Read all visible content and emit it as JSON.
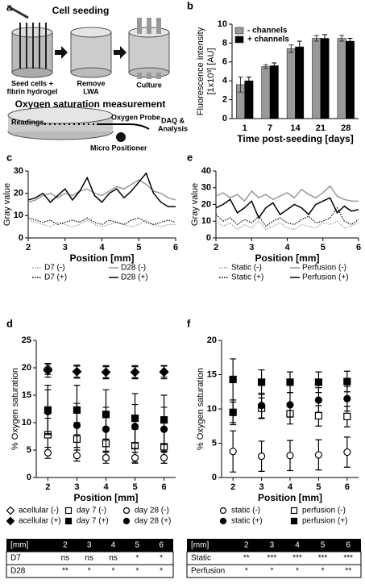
{
  "diagram": {
    "label": "a",
    "title_top": "Cell seeding",
    "step1": [
      "Seed cells +",
      "fibrin hydrogel"
    ],
    "step2": [
      "Remove",
      "LWA"
    ],
    "step3": "Culture",
    "title_bottom": "Oxygen saturation measurement",
    "readings": "Readings",
    "probe": "Oxygen Probe",
    "daq": [
      "DAQ &",
      "Analysis"
    ],
    "positioner": "Micro Positioner"
  },
  "chart_data": [
    {
      "type": "bar",
      "label": "b",
      "y_label": [
        "Fluorescence intensity",
        "[1x10³] [AU]"
      ],
      "x_label": "Time post-seeding [days]",
      "categories": [
        "1",
        "7",
        "14",
        "21",
        "28"
      ],
      "ylim": [
        0,
        10
      ],
      "yticks": [
        0,
        2,
        4,
        6,
        8,
        10
      ],
      "series": [
        {
          "name": "- channels",
          "color": "#999999",
          "values": [
            3.6,
            5.5,
            7.4,
            8.5,
            8.5
          ],
          "errors": [
            0.8,
            0.2,
            0.4,
            0.3,
            0.3
          ]
        },
        {
          "name": "+ channels",
          "color": "#000000",
          "values": [
            4.0,
            5.6,
            7.6,
            8.5,
            8.2
          ],
          "errors": [
            0.4,
            0.3,
            0.6,
            0.4,
            0.3
          ]
        }
      ]
    },
    {
      "type": "line",
      "label": "c",
      "y_label": [
        "Gray value"
      ],
      "x_label": "Position [mm]",
      "xlim": [
        2,
        6
      ],
      "xticks": [
        2,
        3,
        4,
        5,
        6
      ],
      "ylim": [
        0,
        30
      ],
      "yticks": [
        0,
        10,
        20,
        30
      ],
      "x": [
        2.0,
        2.2,
        2.4,
        2.6,
        2.8,
        3.0,
        3.2,
        3.4,
        3.6,
        3.8,
        4.0,
        4.2,
        4.4,
        4.6,
        4.8,
        5.0,
        5.2,
        5.4,
        5.6,
        5.8,
        6.0
      ],
      "series": [
        {
          "name": "D7 (-)",
          "color": "#999999",
          "dash": true,
          "values": [
            8,
            7,
            6,
            5,
            7,
            6,
            5,
            6,
            8,
            6,
            5,
            6,
            7,
            6,
            5,
            6,
            8,
            6,
            5,
            6,
            6
          ]
        },
        {
          "name": "D28 (-)",
          "color": "#999999",
          "dash": false,
          "values": [
            16,
            17,
            19,
            20,
            18,
            20,
            19,
            21,
            22,
            20,
            19,
            21,
            23,
            22,
            24,
            26,
            24,
            21,
            20,
            18,
            17
          ]
        },
        {
          "name": "D7 (+)",
          "color": "#000000",
          "dash": true,
          "values": [
            9,
            8,
            7,
            8,
            6,
            7,
            8,
            7,
            9,
            7,
            6,
            8,
            7,
            6,
            8,
            9,
            7,
            6,
            7,
            8,
            7
          ]
        },
        {
          "name": "D28 (+)",
          "color": "#000000",
          "dash": false,
          "values": [
            17,
            18,
            20,
            16,
            19,
            22,
            17,
            21,
            27,
            19,
            16,
            20,
            22,
            18,
            21,
            25,
            29,
            20,
            16,
            14,
            14
          ]
        }
      ]
    },
    {
      "type": "line",
      "label": "e",
      "y_label": [
        "Gray value"
      ],
      "x_label": "Position [mm]",
      "xlim": [
        2,
        6
      ],
      "xticks": [
        2,
        3,
        4,
        5,
        6
      ],
      "ylim": [
        0,
        40
      ],
      "yticks": [
        0,
        10,
        20,
        30,
        40
      ],
      "x": [
        2.0,
        2.2,
        2.4,
        2.6,
        2.8,
        3.0,
        3.2,
        3.4,
        3.6,
        3.8,
        4.0,
        4.2,
        4.4,
        4.6,
        4.8,
        5.0,
        5.2,
        5.4,
        5.6,
        5.8,
        6.0
      ],
      "series": [
        {
          "name": "Static (-)",
          "color": "#999999",
          "dash": true,
          "values": [
            10,
            7,
            9,
            5,
            8,
            6,
            10,
            5,
            7,
            9,
            6,
            5,
            8,
            7,
            6,
            9,
            8,
            10,
            6,
            7,
            9
          ]
        },
        {
          "name": "Perfusion (-)",
          "color": "#999999",
          "dash": false,
          "values": [
            25,
            27,
            24,
            26,
            22,
            28,
            24,
            26,
            23,
            25,
            27,
            24,
            29,
            26,
            24,
            27,
            31,
            25,
            23,
            22,
            22
          ]
        },
        {
          "name": "Static (+)",
          "color": "#000000",
          "dash": true,
          "values": [
            14,
            10,
            12,
            8,
            11,
            9,
            13,
            7,
            10,
            12,
            9,
            8,
            11,
            13,
            9,
            10,
            12,
            18,
            10,
            8,
            11
          ]
        },
        {
          "name": "Perfusion (+)",
          "color": "#000000",
          "dash": false,
          "values": [
            18,
            20,
            23,
            15,
            18,
            22,
            12,
            18,
            21,
            14,
            17,
            20,
            18,
            14,
            20,
            22,
            24,
            15,
            19,
            16,
            17
          ]
        }
      ]
    },
    {
      "type": "scatter",
      "label": "d",
      "y_label": [
        "% Oxygen saturation"
      ],
      "x_label": "Position [mm]",
      "xlim": [
        1.6,
        6.4
      ],
      "xticks": [
        2,
        3,
        4,
        5,
        6
      ],
      "ylim": [
        0,
        25
      ],
      "yticks": [
        0,
        5,
        10,
        15,
        20,
        25
      ],
      "x": [
        2,
        3,
        4,
        5,
        6
      ],
      "series": [
        {
          "name": "acellular (-)",
          "color": "#000000",
          "marker": "diamond",
          "filled": false,
          "values": [
            19.8,
            19.3,
            19.2,
            19.2,
            19.3
          ],
          "errors": [
            1.0,
            1.0,
            1.0,
            1.0,
            1.0
          ]
        },
        {
          "name": "day 7 (-)",
          "color": "#000000",
          "marker": "square",
          "filled": false,
          "values": [
            7.8,
            7.0,
            6.2,
            5.8,
            5.6
          ],
          "errors": [
            3.0,
            3.0,
            3.0,
            3.0,
            3.0
          ]
        },
        {
          "name": "day 28 (-)",
          "color": "#000000",
          "marker": "circle",
          "filled": false,
          "values": [
            4.5,
            4.0,
            3.6,
            3.6,
            3.6
          ],
          "errors": [
            1.0,
            1.0,
            1.0,
            1.0,
            1.0
          ]
        },
        {
          "name": "acellular (+)",
          "color": "#000000",
          "marker": "diamond",
          "filled": true,
          "values": [
            19.5,
            19.3,
            19.2,
            19.2,
            19.2
          ],
          "errors": [
            1.2,
            1.2,
            1.2,
            1.2,
            1.2
          ]
        },
        {
          "name": "day 7 (+)",
          "color": "#000000",
          "marker": "square",
          "filled": true,
          "values": [
            12.3,
            12.3,
            11.5,
            10.8,
            10.5
          ],
          "errors": [
            4.5,
            4.5,
            4.5,
            4.5,
            4.5
          ]
        },
        {
          "name": "day 28 (+)",
          "color": "#000000",
          "marker": "circle",
          "filled": true,
          "values": [
            12.0,
            9.5,
            8.8,
            9.3,
            8.8
          ],
          "errors": [
            4.0,
            4.0,
            4.0,
            4.0,
            4.0
          ]
        }
      ]
    },
    {
      "type": "scatter",
      "label": "f",
      "y_label": [
        "% Oxygen saturation"
      ],
      "x_label": "Position [mm]",
      "xlim": [
        1.6,
        6.4
      ],
      "xticks": [
        2,
        3,
        4,
        5,
        6
      ],
      "ylim": [
        0,
        20
      ],
      "yticks": [
        0,
        5,
        10,
        15,
        20
      ],
      "x": [
        2,
        3,
        4,
        5,
        6
      ],
      "series": [
        {
          "name": "static (-)",
          "color": "#000000",
          "marker": "circle",
          "filled": false,
          "values": [
            3.8,
            3.1,
            3.2,
            3.3,
            3.7
          ],
          "errors": [
            3.0,
            2.2,
            2.2,
            2.2,
            2.2
          ]
        },
        {
          "name": "perfusion (-)",
          "color": "#000000",
          "marker": "square",
          "filled": false,
          "values": [
            9.5,
            10.1,
            9.3,
            9.0,
            8.9
          ],
          "errors": [
            1.5,
            1.5,
            1.5,
            1.5,
            1.5
          ]
        },
        {
          "name": "static (+)",
          "color": "#000000",
          "marker": "circle",
          "filled": true,
          "values": [
            9.5,
            10.5,
            10.6,
            11.3,
            11.5
          ],
          "errors": [
            1.8,
            1.8,
            1.8,
            1.8,
            1.8
          ]
        },
        {
          "name": "perfusion (+)",
          "color": "#000000",
          "marker": "square",
          "filled": true,
          "values": [
            14.3,
            13.9,
            13.9,
            13.9,
            14.0
          ],
          "errors": [
            3.0,
            1.8,
            1.5,
            1.5,
            1.5
          ]
        }
      ]
    }
  ],
  "tables": [
    {
      "header": [
        "[mm]",
        "2",
        "3",
        "4",
        "5",
        "6"
      ],
      "rows": [
        [
          "D7",
          "ns",
          "ns",
          "ns",
          "*",
          "*"
        ],
        [
          "D28",
          "**",
          "*",
          "*",
          "*",
          "*"
        ]
      ]
    },
    {
      "header": [
        "[mm]",
        "2",
        "3",
        "4",
        "5",
        "6"
      ],
      "rows": [
        [
          "Static",
          "**",
          "***",
          "***",
          "***",
          "***"
        ],
        [
          "Perfusion",
          "*",
          "*",
          "*",
          "*",
          "**"
        ]
      ]
    }
  ]
}
